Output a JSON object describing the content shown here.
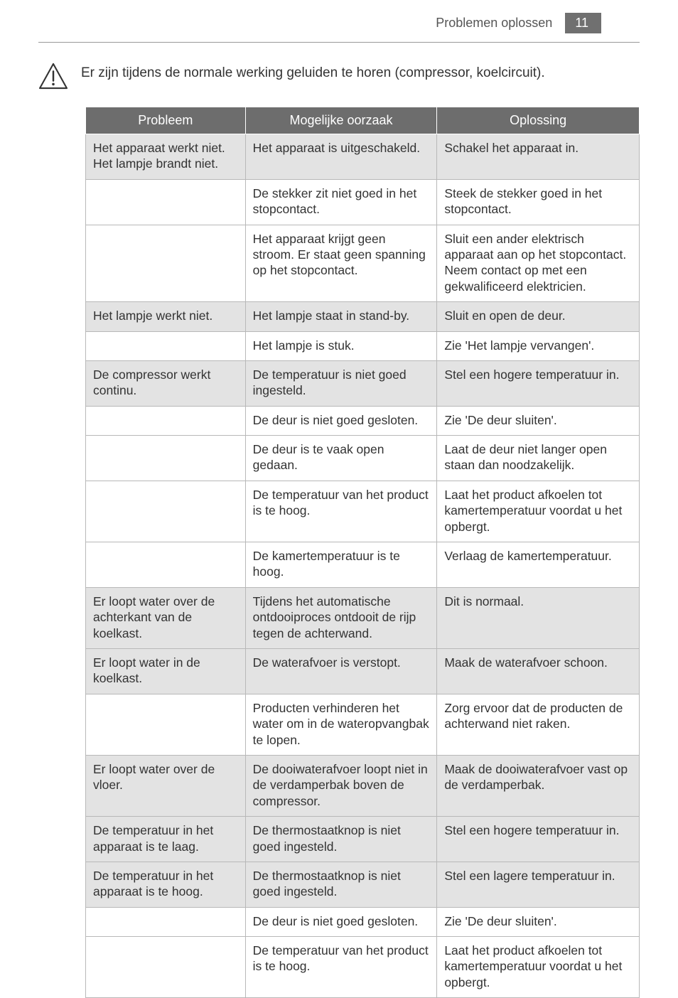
{
  "header": {
    "title": "Problemen oplossen",
    "page_number": "11"
  },
  "intro": "Er zijn tijdens de normale werking geluiden te horen (compressor, koelcircuit).",
  "columns": {
    "a": "Probleem",
    "b": "Mogelijke oorzaak",
    "c": "Oplossing"
  },
  "rows": [
    {
      "shade": "grey",
      "a": "Het apparaat werkt niet. Het lampje brandt niet.",
      "b": "Het apparaat is uitgeschakeld.",
      "c": "Schakel het apparaat in."
    },
    {
      "shade": "white",
      "a": "",
      "b": "De stekker zit niet goed in het stopcontact.",
      "c": "Steek de stekker goed in het stopcontact."
    },
    {
      "shade": "white",
      "a": "",
      "b": "Het apparaat krijgt geen stroom. Er staat geen spanning op het stopcontact.",
      "c": "Sluit een ander elektrisch apparaat aan op het stopcontact. Neem contact op met een gekwalificeerd elektricien."
    },
    {
      "shade": "grey",
      "a": "Het lampje werkt niet.",
      "b": "Het lampje staat in stand-by.",
      "c": "Sluit en open de deur."
    },
    {
      "shade": "white",
      "a": "",
      "b": "Het lampje is stuk.",
      "c": "Zie 'Het lampje vervangen'."
    },
    {
      "shade": "grey",
      "a": "De compressor werkt continu.",
      "b": "De temperatuur is niet goed ingesteld.",
      "c": "Stel een hogere temperatuur in."
    },
    {
      "shade": "white",
      "a": "",
      "b": "De deur is niet goed gesloten.",
      "c": "Zie 'De deur sluiten'."
    },
    {
      "shade": "white",
      "a": "",
      "b": "De deur is te vaak open gedaan.",
      "c": "Laat de deur niet langer open staan dan noodzakelijk."
    },
    {
      "shade": "white",
      "a": "",
      "b": "De temperatuur van het product is te hoog.",
      "c": "Laat het product afkoelen tot kamertemperatuur voordat u het opbergt."
    },
    {
      "shade": "white",
      "a": "",
      "b": "De kamertemperatuur is te hoog.",
      "c": "Verlaag de kamertemperatuur."
    },
    {
      "shade": "grey",
      "a": "Er loopt water over de achterkant van de koelkast.",
      "b": "Tijdens het automatische ontdooiproces ontdooit de rijp tegen de achterwand.",
      "c": "Dit is normaal."
    },
    {
      "shade": "grey",
      "a": "Er loopt water in de koelkast.",
      "b": "De waterafvoer is verstopt.",
      "c": "Maak de waterafvoer schoon."
    },
    {
      "shade": "white",
      "a": "",
      "b": "Producten verhinderen het water om in de wateropvangbak te lopen.",
      "c": "Zorg ervoor dat de producten de achterwand niet raken."
    },
    {
      "shade": "grey",
      "a": "Er loopt water over de vloer.",
      "b": "De dooiwaterafvoer loopt niet in de verdamperbak boven de compressor.",
      "c": "Maak de dooiwaterafvoer vast op de verdamperbak."
    },
    {
      "shade": "grey",
      "a": "De temperatuur in het apparaat is te laag.",
      "b": "De thermostaatknop is niet goed ingesteld.",
      "c": "Stel een hogere temperatuur in."
    },
    {
      "shade": "grey",
      "a": "De temperatuur in het apparaat is te hoog.",
      "b": "De thermostaatknop is niet goed ingesteld.",
      "c": "Stel een lagere temperatuur in."
    },
    {
      "shade": "white",
      "a": "",
      "b": "De deur is niet goed gesloten.",
      "c": "Zie 'De deur sluiten'."
    },
    {
      "shade": "white",
      "a": "",
      "b": "De temperatuur van het product is te hoog.",
      "c": "Laat het product afkoelen tot kamertemperatuur voordat u het opbergt."
    }
  ],
  "colors": {
    "header_bg": "#6d6d6d",
    "grey_row": "#e3e3e3",
    "border": "#b8b8b8",
    "text": "#333333"
  }
}
